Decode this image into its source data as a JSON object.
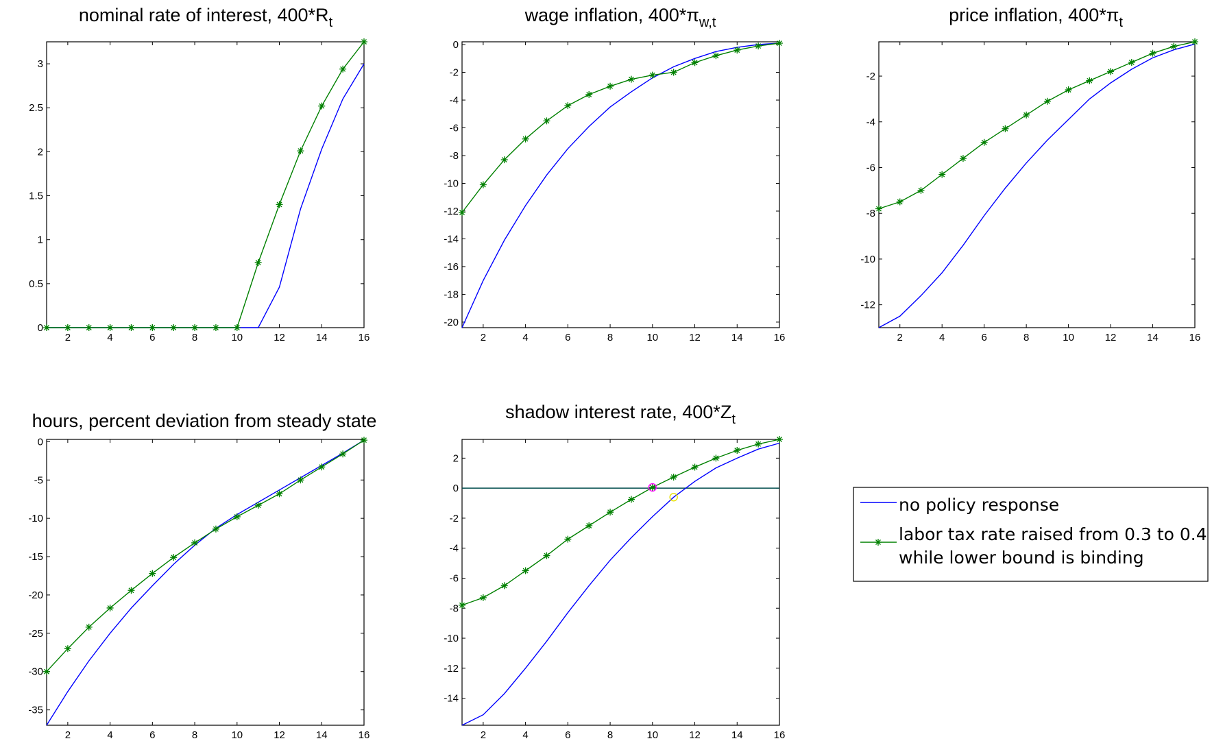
{
  "figure": {
    "legend": {
      "entries": [
        {
          "lines": [
            "no policy response"
          ]
        },
        {
          "lines": [
            "labor tax rate raised from 0.3 to 0.4",
            " while lower bound is binding"
          ]
        }
      ]
    },
    "colors": {
      "no_policy": "#0000ff",
      "tax_policy": "#008000",
      "zero_line": "#004d4d",
      "marker_circle_1": "#ff00ff",
      "marker_circle_2": "#e8e000"
    }
  },
  "chart_data": [
    {
      "type": "line",
      "title": "nominal rate of interest, 400*R",
      "title_subscript": "t",
      "xlim": [
        1,
        16
      ],
      "ylim": [
        0,
        3.25
      ],
      "xticks": [
        2,
        4,
        6,
        8,
        10,
        12,
        14,
        16
      ],
      "yticks": [
        0,
        0.5,
        1,
        1.5,
        2,
        2.5,
        3
      ],
      "x": [
        1,
        2,
        3,
        4,
        5,
        6,
        7,
        8,
        9,
        10,
        11,
        12,
        13,
        14,
        15,
        16
      ],
      "series": [
        {
          "values": [
            0,
            0,
            0,
            0,
            0,
            0,
            0,
            0,
            0,
            0,
            0,
            0.46,
            1.35,
            2.03,
            2.6,
            3.0
          ]
        },
        {
          "values": [
            0,
            0,
            0,
            0,
            0,
            0,
            0,
            0,
            0,
            0,
            0.74,
            1.4,
            2.01,
            2.52,
            2.94,
            3.25
          ],
          "markers": "star"
        }
      ]
    },
    {
      "type": "line",
      "title": "wage inflation, 400*π",
      "title_subscript": "w,t",
      "xlim": [
        1,
        16
      ],
      "ylim": [
        -20.4,
        0.2
      ],
      "xticks": [
        2,
        4,
        6,
        8,
        10,
        12,
        14,
        16
      ],
      "yticks": [
        0,
        -2,
        -4,
        -6,
        -8,
        -10,
        -12,
        -14,
        -16,
        -18,
        -20
      ],
      "x": [
        1,
        2,
        3,
        4,
        5,
        6,
        7,
        8,
        9,
        10,
        11,
        12,
        13,
        14,
        15,
        16
      ],
      "series": [
        {
          "values": [
            -20.4,
            -17.0,
            -14.1,
            -11.6,
            -9.4,
            -7.5,
            -5.9,
            -4.5,
            -3.4,
            -2.4,
            -1.6,
            -1.0,
            -0.5,
            -0.2,
            0,
            0.1
          ]
        },
        {
          "values": [
            -12.1,
            -10.1,
            -8.3,
            -6.8,
            -5.5,
            -4.4,
            -3.6,
            -3.0,
            -2.5,
            -2.2,
            -2.0,
            -1.3,
            -0.8,
            -0.4,
            -0.1,
            0.1
          ],
          "markers": "star"
        }
      ]
    },
    {
      "type": "line",
      "title": "price inflation, 400*π",
      "title_subscript": "t",
      "xlim": [
        1,
        16
      ],
      "ylim": [
        -13,
        -0.5
      ],
      "xticks": [
        2,
        4,
        6,
        8,
        10,
        12,
        14,
        16
      ],
      "yticks": [
        -2,
        -4,
        -6,
        -8,
        -10,
        -12
      ],
      "x": [
        1,
        2,
        3,
        4,
        5,
        6,
        7,
        8,
        9,
        10,
        11,
        12,
        13,
        14,
        15,
        16
      ],
      "series": [
        {
          "values": [
            -13.0,
            -12.5,
            -11.6,
            -10.6,
            -9.4,
            -8.1,
            -6.9,
            -5.8,
            -4.8,
            -3.9,
            -3.0,
            -2.3,
            -1.7,
            -1.2,
            -0.85,
            -0.6
          ]
        },
        {
          "values": [
            -7.8,
            -7.5,
            -7.0,
            -6.3,
            -5.6,
            -4.9,
            -4.3,
            -3.7,
            -3.1,
            -2.6,
            -2.2,
            -1.8,
            -1.4,
            -1.0,
            -0.7,
            -0.5
          ],
          "markers": "star"
        }
      ]
    },
    {
      "type": "line",
      "title": "hours, percent deviation from steady state",
      "title_subscript": "",
      "xlim": [
        1,
        16
      ],
      "ylim": [
        -37,
        0.3
      ],
      "xticks": [
        2,
        4,
        6,
        8,
        10,
        12,
        14,
        16
      ],
      "yticks": [
        0,
        -5,
        -10,
        -15,
        -20,
        -25,
        -30,
        -35
      ],
      "x": [
        1,
        2,
        3,
        4,
        5,
        6,
        7,
        8,
        9,
        10,
        11,
        12,
        13,
        14,
        15,
        16
      ],
      "series": [
        {
          "values": [
            -37.0,
            -32.6,
            -28.6,
            -25.0,
            -21.7,
            -18.8,
            -16.0,
            -13.5,
            -11.3,
            -9.5,
            -7.9,
            -6.3,
            -4.7,
            -3.1,
            -1.5,
            0.2
          ]
        },
        {
          "values": [
            -30.0,
            -27.0,
            -24.2,
            -21.7,
            -19.4,
            -17.2,
            -15.1,
            -13.2,
            -11.4,
            -9.8,
            -8.3,
            -6.8,
            -5.0,
            -3.3,
            -1.6,
            0.2
          ],
          "markers": "star"
        }
      ]
    },
    {
      "type": "line",
      "title": "shadow interest rate, 400*Z",
      "title_subscript": "t",
      "xlim": [
        1,
        16
      ],
      "ylim": [
        -15.8,
        3.25
      ],
      "xticks": [
        2,
        4,
        6,
        8,
        10,
        12,
        14,
        16
      ],
      "yticks": [
        2,
        0,
        -2,
        -4,
        -6,
        -8,
        -10,
        -12,
        -14
      ],
      "x": [
        1,
        2,
        3,
        4,
        5,
        6,
        7,
        8,
        9,
        10,
        11,
        12,
        13,
        14,
        15,
        16
      ],
      "series": [
        {
          "values": [
            -15.8,
            -15.1,
            -13.7,
            -12.0,
            -10.2,
            -8.3,
            -6.5,
            -4.8,
            -3.3,
            -1.9,
            -0.6,
            0.45,
            1.35,
            2.0,
            2.6,
            3.0
          ]
        },
        {
          "values": [
            -7.8,
            -7.3,
            -6.5,
            -5.5,
            -4.5,
            -3.4,
            -2.5,
            -1.6,
            -0.75,
            0.05,
            0.74,
            1.4,
            2.0,
            2.52,
            2.94,
            3.25
          ],
          "markers": "star"
        }
      ],
      "zero_line": 0,
      "circles": [
        {
          "x": 10,
          "y": 0.05,
          "color": "magenta"
        },
        {
          "x": 11,
          "y": -0.6,
          "color": "yellow"
        }
      ]
    }
  ]
}
